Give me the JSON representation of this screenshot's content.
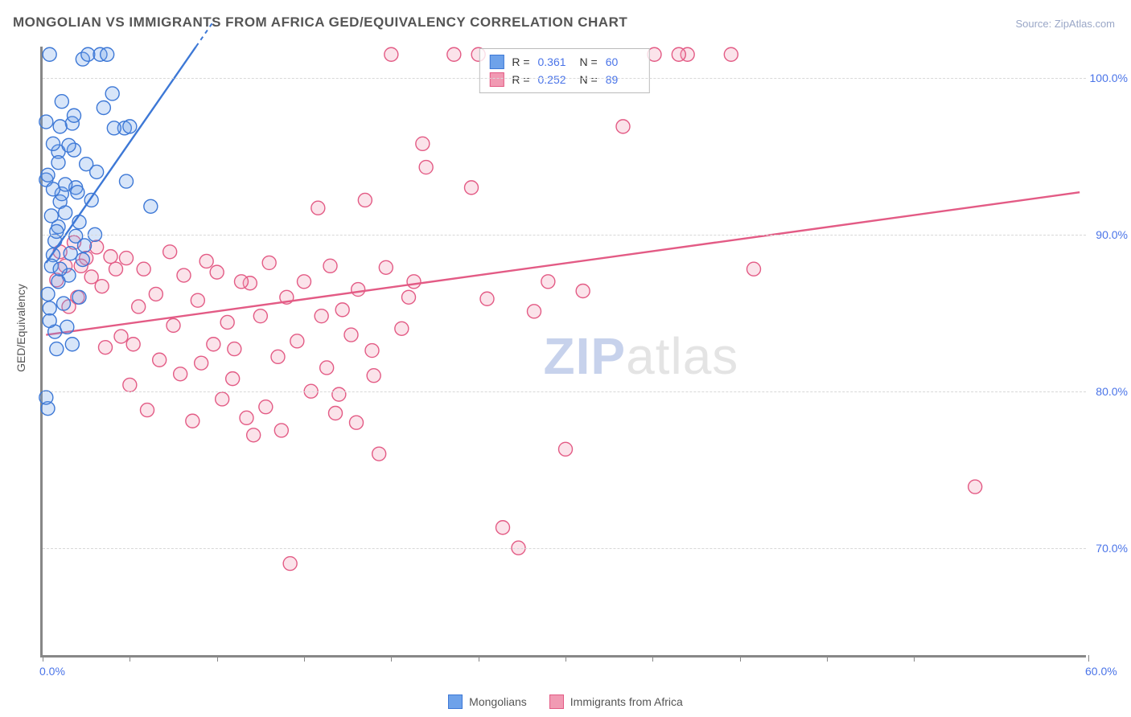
{
  "title": "MONGOLIAN VS IMMIGRANTS FROM AFRICA GED/EQUIVALENCY CORRELATION CHART",
  "source": "Source: ZipAtlas.com",
  "y_axis_title": "GED/Equivalency",
  "watermark_bold": "ZIP",
  "watermark_rest": "atlas",
  "chart": {
    "type": "scatter",
    "xlim": [
      0,
      60
    ],
    "ylim": [
      63,
      102
    ],
    "x_ticks": [
      0,
      5,
      10,
      15,
      20,
      25,
      30,
      35,
      40,
      45,
      50,
      60
    ],
    "x_tick_labels": {
      "0": "0.0%",
      "60": "60.0%"
    },
    "y_ticks": [
      70,
      80,
      90,
      100
    ],
    "y_tick_labels": {
      "70": "70.0%",
      "80": "80.0%",
      "90": "90.0%",
      "100": "100.0%"
    },
    "background_color": "#ffffff",
    "grid_color": "#d8d8d8",
    "axis_color": "#878787",
    "marker_radius": 8.5,
    "series": [
      {
        "label": "Mongolians",
        "fill": "#6ea2ea",
        "stroke": "#3d78d6",
        "R": "0.361",
        "N": "60",
        "trend": {
          "x1": 0.2,
          "y1": 88.2,
          "x2": 8.8,
          "y2": 102,
          "extend_dash_to_x": 9.8
        },
        "points": [
          [
            0.4,
            101.5
          ],
          [
            2.3,
            101.2
          ],
          [
            0.9,
            90.5
          ],
          [
            0.6,
            88.7
          ],
          [
            1.0,
            92.1
          ],
          [
            0.3,
            86.2
          ],
          [
            0.7,
            89.6
          ],
          [
            1.3,
            91.4
          ],
          [
            0.2,
            93.5
          ],
          [
            0.9,
            95.3
          ],
          [
            1.7,
            97.1
          ],
          [
            2.1,
            90.8
          ],
          [
            0.5,
            88.0
          ],
          [
            1.1,
            92.6
          ],
          [
            0.4,
            85.3
          ],
          [
            0.8,
            82.7
          ],
          [
            0.3,
            78.9
          ],
          [
            1.5,
            87.4
          ],
          [
            1.9,
            89.9
          ],
          [
            2.6,
            101.5
          ],
          [
            3.3,
            101.5
          ],
          [
            2.8,
            92.2
          ],
          [
            4.8,
            93.4
          ],
          [
            4.7,
            96.8
          ],
          [
            3.1,
            94.0
          ],
          [
            6.2,
            91.8
          ],
          [
            3.7,
            101.5
          ],
          [
            4.0,
            99.0
          ],
          [
            1.9,
            93.0
          ],
          [
            5.0,
            96.9
          ],
          [
            4.1,
            96.8
          ],
          [
            0.6,
            95.8
          ],
          [
            0.2,
            97.2
          ],
          [
            1.0,
            96.9
          ],
          [
            1.8,
            95.4
          ],
          [
            2.4,
            89.3
          ],
          [
            1.2,
            85.6
          ],
          [
            0.7,
            83.8
          ],
          [
            0.9,
            87.0
          ],
          [
            1.6,
            88.8
          ],
          [
            0.5,
            91.2
          ],
          [
            0.3,
            93.8
          ],
          [
            1.1,
            98.5
          ],
          [
            1.4,
            84.1
          ],
          [
            0.2,
            79.6
          ],
          [
            0.8,
            90.2
          ],
          [
            2.0,
            92.7
          ],
          [
            2.5,
            94.5
          ],
          [
            3.5,
            98.1
          ],
          [
            1.7,
            83.0
          ],
          [
            2.1,
            86.0
          ],
          [
            0.4,
            84.5
          ],
          [
            1.0,
            87.8
          ],
          [
            0.6,
            92.9
          ],
          [
            0.9,
            94.6
          ],
          [
            1.8,
            97.6
          ],
          [
            2.3,
            88.4
          ],
          [
            3.0,
            90.0
          ],
          [
            1.3,
            93.2
          ],
          [
            1.5,
            95.7
          ]
        ]
      },
      {
        "label": "Immigrants from Africa",
        "fill": "#f19ab3",
        "stroke": "#e35b85",
        "R": "0.252",
        "N": "89",
        "trend": {
          "x1": 0.2,
          "y1": 83.6,
          "x2": 59.5,
          "y2": 92.7
        },
        "points": [
          [
            1.0,
            88.9
          ],
          [
            2.5,
            88.5
          ],
          [
            3.4,
            86.7
          ],
          [
            4.2,
            87.8
          ],
          [
            5.8,
            87.8
          ],
          [
            1.8,
            89.5
          ],
          [
            2.2,
            88.0
          ],
          [
            3.1,
            89.2
          ],
          [
            0.8,
            87.1
          ],
          [
            2.0,
            86.0
          ],
          [
            4.8,
            88.5
          ],
          [
            1.5,
            85.4
          ],
          [
            5.5,
            85.4
          ],
          [
            6.5,
            86.2
          ],
          [
            7.3,
            88.9
          ],
          [
            8.1,
            87.4
          ],
          [
            9.4,
            88.3
          ],
          [
            10.6,
            84.4
          ],
          [
            11.9,
            86.9
          ],
          [
            13.0,
            88.2
          ],
          [
            3.6,
            82.8
          ],
          [
            4.5,
            83.5
          ],
          [
            6.7,
            82.0
          ],
          [
            7.9,
            81.1
          ],
          [
            9.1,
            81.8
          ],
          [
            5.0,
            80.4
          ],
          [
            10.3,
            79.5
          ],
          [
            12.1,
            77.2
          ],
          [
            11.0,
            82.7
          ],
          [
            13.7,
            77.5
          ],
          [
            8.6,
            78.1
          ],
          [
            6.0,
            78.8
          ],
          [
            14.6,
            83.2
          ],
          [
            15.4,
            80.0
          ],
          [
            16.3,
            81.5
          ],
          [
            17.2,
            85.2
          ],
          [
            18.1,
            86.5
          ],
          [
            18.9,
            82.6
          ],
          [
            19.7,
            87.9
          ],
          [
            20.6,
            84.0
          ],
          [
            15.0,
            87.0
          ],
          [
            16.8,
            78.6
          ],
          [
            19.3,
            76.0
          ],
          [
            14.2,
            69.0
          ],
          [
            14.0,
            86.0
          ],
          [
            15.8,
            91.7
          ],
          [
            18.5,
            92.2
          ],
          [
            21.3,
            87.0
          ],
          [
            16.0,
            84.8
          ],
          [
            17.7,
            83.6
          ],
          [
            20.0,
            101.5
          ],
          [
            22.0,
            94.3
          ],
          [
            23.6,
            101.5
          ],
          [
            21.8,
            95.8
          ],
          [
            24.6,
            93.0
          ],
          [
            25.5,
            85.9
          ],
          [
            26.4,
            71.3
          ],
          [
            27.3,
            70.0
          ],
          [
            28.2,
            85.1
          ],
          [
            29.0,
            87.0
          ],
          [
            30.0,
            76.3
          ],
          [
            31.0,
            86.4
          ],
          [
            25.0,
            101.5
          ],
          [
            33.3,
            96.9
          ],
          [
            35.1,
            101.5
          ],
          [
            37.0,
            101.5
          ],
          [
            39.5,
            101.5
          ],
          [
            40.8,
            87.8
          ],
          [
            36.5,
            101.5
          ],
          [
            53.5,
            73.9
          ],
          [
            1.3,
            88.0
          ],
          [
            2.8,
            87.3
          ],
          [
            3.9,
            88.6
          ],
          [
            5.2,
            83.0
          ],
          [
            7.5,
            84.2
          ],
          [
            8.9,
            85.8
          ],
          [
            10.0,
            87.6
          ],
          [
            11.4,
            87.0
          ],
          [
            12.5,
            84.8
          ],
          [
            13.5,
            82.2
          ],
          [
            12.8,
            79.0
          ],
          [
            9.8,
            83.0
          ],
          [
            10.9,
            80.8
          ],
          [
            11.7,
            78.3
          ],
          [
            17.0,
            79.8
          ],
          [
            18.0,
            78.0
          ],
          [
            19.0,
            81.0
          ],
          [
            21.0,
            86.0
          ],
          [
            16.5,
            88.0
          ]
        ]
      }
    ]
  },
  "legend_bottom": {
    "items": [
      "Mongolians",
      "Immigrants from Africa"
    ]
  },
  "stat_labels": {
    "r": "R  =",
    "n": "N  ="
  }
}
